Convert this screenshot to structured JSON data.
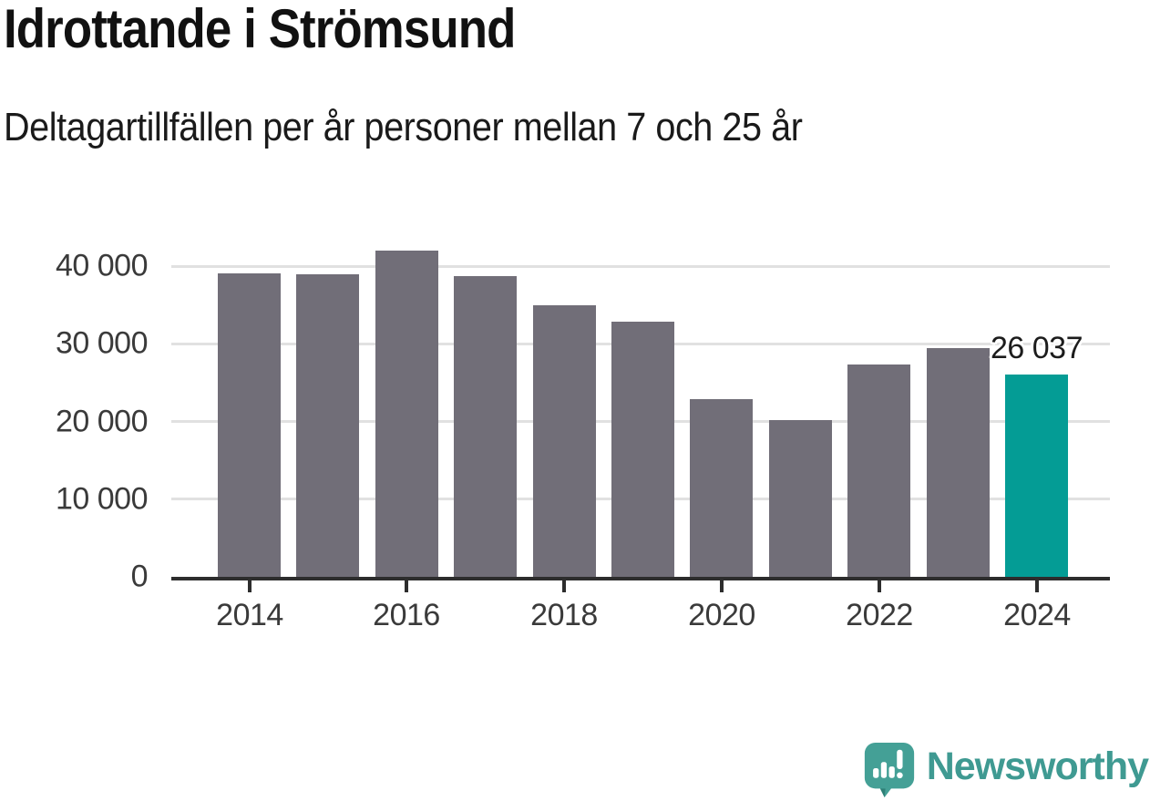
{
  "chart_data": {
    "type": "bar",
    "title": "Idrottande i Strömsund",
    "subtitle": "Deltagartillfällen per år personer mellan 7 och 25 år",
    "categories": [
      "2014",
      "2015",
      "2016",
      "2017",
      "2018",
      "2019",
      "2020",
      "2021",
      "2022",
      "2023",
      "2024"
    ],
    "values": [
      39100,
      38900,
      42000,
      38700,
      35000,
      32900,
      22900,
      20200,
      27300,
      29400,
      26037
    ],
    "highlight": {
      "index": 10,
      "label": "26 037"
    },
    "xlabel": "",
    "ylabel": "",
    "ylim": [
      0,
      42000
    ],
    "yticks": [
      0,
      10000,
      20000,
      30000,
      40000
    ],
    "ytick_labels": [
      "0",
      "10 000",
      "20 000",
      "30 000",
      "40 000"
    ],
    "xtick_positions": [
      0,
      2,
      4,
      6,
      8,
      10
    ],
    "xtick_labels": [
      "2014",
      "2016",
      "2018",
      "2020",
      "2022",
      "2024"
    ],
    "grid": "horizontal",
    "legend": "none",
    "colors": {
      "bar": "#716e78",
      "highlight": "#049c95",
      "grid": "#e1e1e1",
      "axis": "#2d2d2d",
      "tick_text": "#3a3a3a",
      "value_text": "#1c1c1c"
    }
  },
  "footer": {
    "brand": "Newsworthy",
    "brand_color": "#3f9a92",
    "logo_icon": "newsworthy-speech-bubble-bar-chart-icon",
    "logo_bubble_color": "#44a096",
    "logo_fold_color": "#2f8077"
  }
}
